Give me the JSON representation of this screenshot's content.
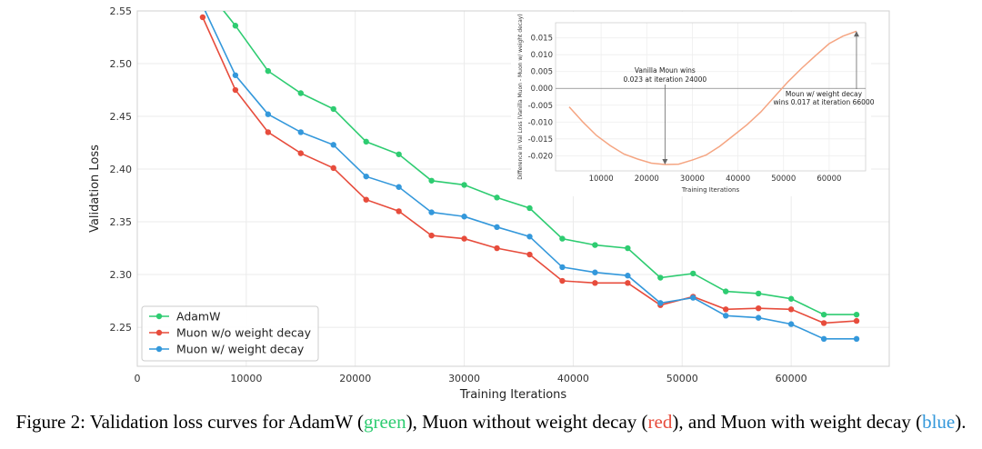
{
  "chart_data": [
    {
      "type": "line",
      "title": "",
      "xlabel": "Training Iterations",
      "ylabel": "Validation Loss",
      "xlim": [
        0,
        69000
      ],
      "ylim": [
        2.213,
        2.55
      ],
      "xticks": [
        0,
        10000,
        20000,
        30000,
        40000,
        50000,
        60000
      ],
      "xtick_labels": [
        "0",
        "10000",
        "20000",
        "30000",
        "40000",
        "50000",
        "60000"
      ],
      "yticks": [
        2.25,
        2.3,
        2.35,
        2.4,
        2.45,
        2.5,
        2.55
      ],
      "ytick_labels": [
        "2.25",
        "2.30",
        "2.35",
        "2.40",
        "2.45",
        "2.50",
        "2.55"
      ],
      "grid": true,
      "legend_position": "lower-left",
      "series": [
        {
          "name": "AdamW",
          "color": "#2ecc71",
          "x": [
            6000,
            9000,
            12000,
            15000,
            18000,
            21000,
            24000,
            27000,
            30000,
            33000,
            36000,
            39000,
            42000,
            45000,
            48000,
            51000,
            54000,
            57000,
            60000,
            63000,
            66000
          ],
          "y": [
            2.575,
            2.536,
            2.493,
            2.472,
            2.457,
            2.426,
            2.414,
            2.389,
            2.385,
            2.373,
            2.363,
            2.334,
            2.328,
            2.325,
            2.297,
            2.301,
            2.284,
            2.282,
            2.277,
            2.262,
            2.262
          ]
        },
        {
          "name": "Muon w/o weight decay",
          "color": "#e74c3c",
          "x": [
            6000,
            9000,
            12000,
            15000,
            18000,
            21000,
            24000,
            27000,
            30000,
            33000,
            36000,
            39000,
            42000,
            45000,
            48000,
            51000,
            54000,
            57000,
            60000,
            63000,
            66000
          ],
          "y": [
            2.544,
            2.475,
            2.435,
            2.415,
            2.401,
            2.371,
            2.36,
            2.337,
            2.334,
            2.325,
            2.319,
            2.294,
            2.292,
            2.292,
            2.271,
            2.279,
            2.267,
            2.268,
            2.267,
            2.254,
            2.256
          ]
        },
        {
          "name": "Muon w/ weight decay",
          "color": "#3498db",
          "x": [
            6000,
            9000,
            12000,
            15000,
            18000,
            21000,
            24000,
            27000,
            30000,
            33000,
            36000,
            39000,
            42000,
            45000,
            48000,
            51000,
            54000,
            57000,
            60000,
            63000,
            66000
          ],
          "y": [
            2.555,
            2.489,
            2.452,
            2.435,
            2.423,
            2.393,
            2.383,
            2.359,
            2.355,
            2.345,
            2.336,
            2.307,
            2.302,
            2.299,
            2.273,
            2.278,
            2.261,
            2.259,
            2.253,
            2.239,
            2.239
          ]
        }
      ]
    },
    {
      "type": "line",
      "title": "",
      "xlabel": "Training Iterations",
      "ylabel": "Difference in Val Loss (Vanilla Muon - Muon w/ weight decay)",
      "xlim": [
        0,
        68000
      ],
      "ylim": [
        -0.0245,
        0.0195
      ],
      "xticks": [
        10000,
        20000,
        30000,
        40000,
        50000,
        60000
      ],
      "xtick_labels": [
        "10000",
        "20000",
        "30000",
        "40000",
        "50000",
        "60000"
      ],
      "yticks": [
        -0.02,
        -0.015,
        -0.01,
        -0.005,
        0.0,
        0.005,
        0.01,
        0.015
      ],
      "ytick_labels": [
        "-0.020",
        "-0.015",
        "-0.010",
        "-0.005",
        "0.000",
        "0.005",
        "0.010",
        "0.015"
      ],
      "grid": true,
      "zero_line": true,
      "series": [
        {
          "name": "",
          "color": "#f5a582",
          "x": [
            3000,
            6000,
            9000,
            12000,
            15000,
            18000,
            21000,
            24000,
            27000,
            30000,
            33000,
            36000,
            39000,
            42000,
            45000,
            48000,
            51000,
            54000,
            57000,
            60000,
            63000,
            66000
          ],
          "y": [
            -0.0055,
            -0.01,
            -0.014,
            -0.017,
            -0.0195,
            -0.021,
            -0.0222,
            -0.0226,
            -0.0225,
            -0.0213,
            -0.0198,
            -0.0172,
            -0.014,
            -0.0108,
            -0.007,
            -0.0025,
            0.002,
            0.006,
            0.0097,
            0.0133,
            0.0155,
            0.017
          ]
        }
      ],
      "annotations": [
        {
          "id": "vanilla",
          "lines": [
            "Vanilla Moun wins",
            "0.023 at iteration 24000"
          ],
          "x": 24000,
          "y": -0.0226
        },
        {
          "id": "wd",
          "lines": [
            "Moun w/ weight decay",
            "wins 0.017 at iteration 66000"
          ],
          "x": 66000,
          "y": 0.017
        }
      ]
    }
  ],
  "caption": {
    "prefix": "Figure 2: Validation loss curves for AdamW (",
    "green": "green",
    "mid1": "), Muon without weight decay (",
    "red": "red",
    "mid2": "), and Muon with weight decay (",
    "blue": "blue",
    "suffix": ")."
  }
}
